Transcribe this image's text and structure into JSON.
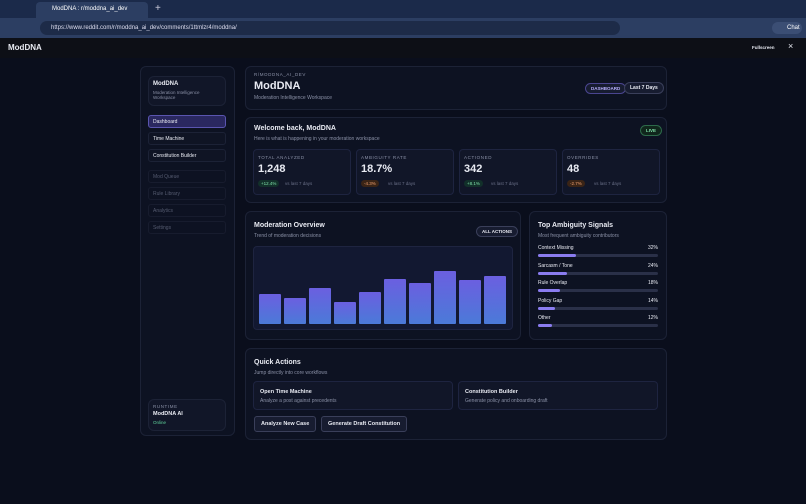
{
  "browser": {
    "tab_title": "ModDNA : r/moddna_ai_dev",
    "url": "https://www.reddit.com/r/moddna_ai_dev/comments/1ttmlzr4/moddna/",
    "chat": "Chat"
  },
  "app": {
    "title": "ModDNA",
    "fullscreen": "Fullscreen"
  },
  "sidebar": {
    "brand": "ModDNA",
    "brand_sub": "Moderation Intelligence Workspace",
    "nav": [
      "Dashboard",
      "Time Machine",
      "Constitution Builder"
    ],
    "nav_disabled": [
      "Mod Queue",
      "Rule Library",
      "Analytics",
      "Settings"
    ],
    "runtime": {
      "label": "RUNTIME",
      "name": "ModDNA AI",
      "status": "Online"
    }
  },
  "header": {
    "eyebrow": "R/MODDNA_AI_DEV",
    "title": "ModDNA",
    "subtitle": "Moderation Intelligence Workspace",
    "badge": "DASHBOARD",
    "range": "Last 7 Days"
  },
  "welcome": {
    "title": "Welcome back, ModDNA",
    "subtitle": "Here is what is happening in your moderation workspace",
    "badge": "LIVE"
  },
  "stats": [
    {
      "label": "TOTAL ANALYZED",
      "value": "1,248",
      "delta": "+12.4%",
      "note": "vs last 7 days"
    },
    {
      "label": "AMBIGUITY RATE",
      "value": "18.7%",
      "delta": "-4.3%",
      "note": "vs last 7 days"
    },
    {
      "label": "ACTIONED",
      "value": "342",
      "delta": "+8.1%",
      "note": "vs last 7 days"
    },
    {
      "label": "OVERRIDES",
      "value": "48",
      "delta": "-2.7%",
      "note": "vs last 7 days"
    }
  ],
  "chart_data": {
    "type": "bar",
    "title": "Moderation Overview",
    "subtitle": "Trend of moderation decisions",
    "badge": "ALL ACTIONS",
    "categories": [
      null,
      null,
      null,
      null,
      null,
      null,
      null,
      null,
      null,
      null
    ],
    "values": [
      38,
      33,
      46,
      28,
      41,
      58,
      53,
      68,
      56,
      62
    ],
    "color": "#6b5fe0"
  },
  "signals": {
    "title": "Top Ambiguity Signals",
    "subtitle": "Most frequent ambiguity contributors",
    "items": [
      {
        "name": "Context Missing",
        "value": 32,
        "value_label": "32%"
      },
      {
        "name": "Sarcasm / Tone",
        "value": 24,
        "value_label": "24%"
      },
      {
        "name": "Rule Overlap",
        "value": 18,
        "value_label": "18%"
      },
      {
        "name": "Policy Gap",
        "value": 14,
        "value_label": "14%"
      },
      {
        "name": "Other",
        "value": 12,
        "value_label": "12%"
      }
    ]
  },
  "quick": {
    "title": "Quick Actions",
    "subtitle": "Jump directly into core workflows",
    "cards": [
      {
        "title": "Open Time Machine",
        "desc": "Analyze a post against precedents"
      },
      {
        "title": "Constitution Builder",
        "desc": "Generate policy and onboarding draft"
      }
    ],
    "buttons": [
      "Analyze New Case",
      "Generate Draft Constitution"
    ]
  }
}
